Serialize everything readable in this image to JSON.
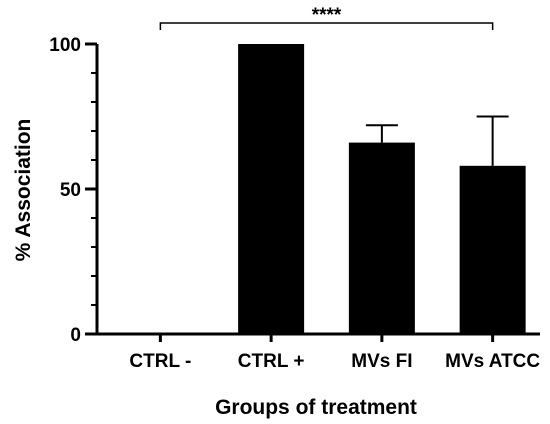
{
  "chart_data": {
    "type": "bar",
    "categories": [
      "CTRL -",
      "CTRL +",
      "MVs FI",
      "MVs ATCC"
    ],
    "values": [
      0,
      100,
      66,
      58
    ],
    "error_upper": [
      0,
      0,
      72,
      75
    ],
    "xlabel": "Groups of treatment",
    "ylabel": "% Association",
    "ylim": [
      0,
      100
    ],
    "yticks": [
      0,
      50,
      100
    ],
    "significance": {
      "label": "****",
      "from": "CTRL -",
      "to": "MVs ATCC"
    },
    "bar_color": "#000000",
    "grid": false
  }
}
